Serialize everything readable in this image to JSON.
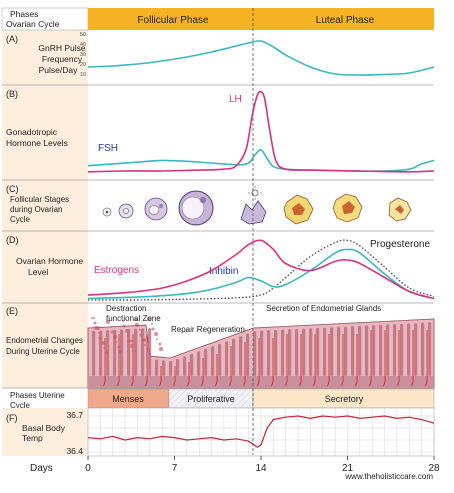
{
  "header": {
    "left_line1": "Phases",
    "left_line2": "Ovarian Cycle",
    "follicular": "Follicular Phase",
    "luteal": "Luteal Phase"
  },
  "sections": {
    "a": {
      "letter": "(A)",
      "label_lines": [
        "GnRH Pulse",
        "Frequency",
        "Pulse/Day"
      ],
      "ticks": [
        "50",
        "40",
        "30",
        "20",
        "10"
      ]
    },
    "b": {
      "letter": "(B)",
      "label_lines": [
        "Gonadotropic",
        "Hormone Levels"
      ],
      "fsh": "FSH",
      "lh": "LH"
    },
    "c": {
      "letter": "(C)",
      "label_lines": [
        "Follicular Stages",
        "during Ovarian",
        "Cycle"
      ]
    },
    "d": {
      "letter": "(D)",
      "label_lines": [
        "Ovarian Hormone",
        "Level"
      ],
      "estrogens": "Estrogens",
      "inhibin": "Inhibin",
      "progesterone": "Progesterone"
    },
    "e": {
      "letter": "(E)",
      "label_lines": [
        "Endometrial Changes",
        "During Uterine Cycle"
      ],
      "destruction_lines": [
        "Destraction",
        "functional Zone"
      ],
      "repair": "Repair Regeneration",
      "secretion": "Secretion of Endometrial Glands"
    },
    "uterine": {
      "label_lines": [
        "Phases Uterine",
        "Cycle"
      ],
      "menses": "Menses",
      "proliferative": "Proliferative",
      "secretory": "Secretory"
    },
    "f": {
      "letter": "(F)",
      "label_lines": [
        "Basal Body",
        "Temp"
      ],
      "t_high": "36.7",
      "t_low": "36.4"
    }
  },
  "days": {
    "label": "Days",
    "ticks": [
      "0",
      "7",
      "14",
      "21",
      "28"
    ]
  },
  "watermark": "www.theholisticcare.com",
  "colors": {
    "panel_bg": "#fdeede",
    "header_bg": "#f5b324",
    "teal": "#3ab6c0",
    "magenta": "#d6337f",
    "dotted": "#444444",
    "blue_text": "#2233aa",
    "menses": "#f0a88a",
    "proliferative": "#e9e9f0",
    "secretory": "#fbe6c8",
    "temp_line": "#c6233b"
  },
  "chart_data": [
    {
      "type": "line",
      "title": "GnRH Pulse Frequency Pulse/Day",
      "xlabel": "Days",
      "ylabel": "",
      "xlim": [
        0,
        28
      ],
      "ylim": [
        0,
        50
      ],
      "series": [
        {
          "name": "",
          "x": [
            0,
            2,
            4,
            6,
            8,
            10,
            12,
            13,
            14,
            15,
            16,
            18,
            20,
            22,
            24,
            26,
            28
          ],
          "y": [
            17,
            18,
            20,
            23,
            27,
            32,
            38,
            41,
            43,
            37,
            29,
            17,
            10,
            9,
            9.5,
            11,
            17
          ]
        }
      ]
    },
    {
      "type": "line",
      "title": "Gonadotropic Hormone Levels",
      "xlabel": "Days",
      "xlim": [
        0,
        28
      ],
      "ylim": [
        0,
        100
      ],
      "series": [
        {
          "name": "FSH",
          "x": [
            0,
            2,
            4,
            6,
            8,
            10,
            12,
            13,
            13.5,
            14,
            14.5,
            15,
            16,
            18,
            21,
            24,
            26,
            27,
            28
          ],
          "y": [
            14,
            16,
            18,
            20,
            19,
            17,
            15,
            17,
            26,
            32,
            22,
            13,
            10,
            9,
            8,
            8,
            10,
            16,
            20
          ]
        },
        {
          "name": "LH",
          "x": [
            0,
            3,
            6,
            9,
            11,
            12,
            12.8,
            13.3,
            13.7,
            14,
            14.3,
            14.7,
            15.2,
            16,
            18,
            22,
            26,
            28
          ],
          "y": [
            7,
            8,
            8,
            9,
            10,
            14,
            33,
            72,
            94,
            98,
            90,
            55,
            20,
            10,
            9,
            8,
            7,
            8
          ]
        }
      ]
    },
    {
      "type": "line",
      "title": "Ovarian Hormone Level",
      "xlabel": "Days",
      "xlim": [
        0,
        28
      ],
      "ylim": [
        0,
        100
      ],
      "series": [
        {
          "name": "Estrogens",
          "x": [
            0,
            2,
            4,
            6,
            8,
            10,
            12,
            13,
            14,
            15,
            16,
            18,
            20,
            21,
            22,
            24,
            26,
            28
          ],
          "y": [
            10,
            12,
            15,
            20,
            30,
            45,
            68,
            82,
            88,
            75,
            55,
            45,
            58,
            60,
            55,
            35,
            15,
            5
          ]
        },
        {
          "name": "Inhibin",
          "x": [
            0,
            2,
            4,
            6,
            8,
            10,
            12,
            13,
            14,
            15,
            16,
            18,
            20,
            21,
            22,
            24,
            26,
            28
          ],
          "y": [
            5,
            6,
            7,
            9,
            12,
            18,
            28,
            35,
            30,
            22,
            25,
            45,
            70,
            75,
            70,
            40,
            15,
            5
          ]
        },
        {
          "name": "Progesterone",
          "x": [
            0,
            4,
            8,
            12,
            14,
            15,
            16,
            18,
            20,
            21,
            22,
            24,
            26,
            28
          ],
          "y": [
            3,
            3,
            4,
            6,
            10,
            20,
            35,
            65,
            85,
            88,
            80,
            50,
            20,
            8
          ]
        }
      ]
    },
    {
      "type": "line",
      "title": "Basal Body Temp",
      "xlabel": "Days",
      "xlim": [
        0,
        28
      ],
      "ylim": [
        36.4,
        36.7
      ],
      "series": [
        {
          "name": "",
          "x": [
            0,
            1,
            2,
            3,
            4,
            5,
            6,
            7,
            8,
            9,
            10,
            11,
            12,
            13,
            13.7,
            14,
            14.5,
            15,
            16,
            17,
            18,
            19,
            20,
            21,
            22,
            23,
            24,
            25,
            26,
            27,
            28
          ],
          "y": [
            36.52,
            36.51,
            36.53,
            36.5,
            36.52,
            36.51,
            36.53,
            36.52,
            36.5,
            36.51,
            36.52,
            36.5,
            36.51,
            36.49,
            36.44,
            36.46,
            36.6,
            36.67,
            36.69,
            36.7,
            36.68,
            36.7,
            36.69,
            36.7,
            36.68,
            36.69,
            36.7,
            36.68,
            36.69,
            36.67,
            36.64
          ]
        }
      ]
    }
  ]
}
